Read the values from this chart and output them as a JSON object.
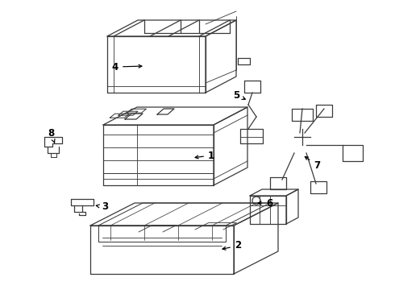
{
  "bg_color": "#ffffff",
  "line_color": "#3a3a3a",
  "label_color": "#000000",
  "fig_width": 4.9,
  "fig_height": 3.6,
  "dpi": 100,
  "lw": 0.9
}
